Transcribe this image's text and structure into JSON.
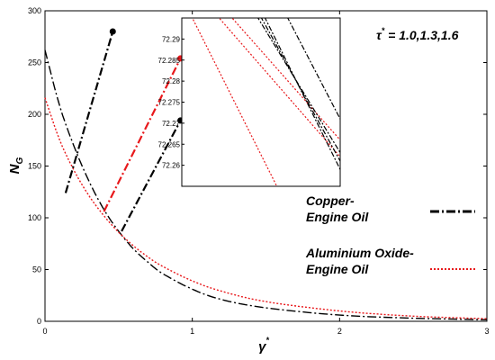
{
  "chart_data": {
    "type": "line",
    "xlabel": "γ",
    "xlabel_sup": "*",
    "ylabel": "N",
    "ylabel_sub": "G",
    "xlim": [
      0,
      3
    ],
    "ylim": [
      0,
      300
    ],
    "xticks": [
      0,
      1,
      2,
      3
    ],
    "yticks": [
      0,
      50,
      100,
      150,
      200,
      250,
      300
    ],
    "annotation": {
      "prefix": "τ",
      "sup": "*",
      "text": " = 1.0,1.3,1.6"
    },
    "legend": [
      {
        "line1": "Copper-",
        "line2": "Engine Oil",
        "color": "#000000",
        "dash": "10,3,2,3"
      },
      {
        "line1": "Aluminium Oxide-",
        "line2": "Engine Oil",
        "color": "#e8181b",
        "dash": "2,2"
      }
    ],
    "series": [
      {
        "color": "#000000",
        "dash": "10,3,2,3",
        "x": [
          0,
          0.1,
          0.2,
          0.3,
          0.4,
          0.5,
          0.6,
          0.7,
          0.8,
          1.0,
          1.2,
          1.5,
          2.0,
          2.5,
          3.0
        ],
        "y": [
          262,
          208,
          168,
          135,
          108,
          87,
          70,
          57,
          46,
          31,
          21,
          13,
          6,
          3,
          1.5
        ]
      },
      {
        "color": "#e8181b",
        "dash": "2,2",
        "x": [
          0,
          0.1,
          0.2,
          0.3,
          0.4,
          0.5,
          0.6,
          0.7,
          0.8,
          1.0,
          1.2,
          1.5,
          2.0,
          2.5,
          3.0
        ],
        "y": [
          216,
          175,
          145,
          121,
          102,
          86,
          73,
          62,
          53,
          39,
          29,
          19,
          10,
          5,
          2.5
        ]
      }
    ],
    "zoom_lines": [
      {
        "color": "#000000",
        "points": [
          [
            0.14,
            124
          ],
          [
            0.46,
            280
          ]
        ]
      },
      {
        "color": "#e8181b",
        "points": [
          [
            0.4,
            106
          ],
          [
            0.92,
            254
          ]
        ]
      },
      {
        "color": "#000000",
        "points": [
          [
            0.52,
            87
          ],
          [
            0.92,
            194
          ]
        ]
      }
    ],
    "inset": {
      "ylim": [
        72.255,
        72.295
      ],
      "yticks": [
        "72.26",
        "72.265",
        "72.27",
        "72.275",
        "72.28",
        "72.285",
        "72.29"
      ],
      "ytick_values": [
        72.26,
        72.265,
        72.27,
        72.275,
        72.28,
        72.285,
        72.29
      ],
      "lines": [
        {
          "color": "#e8181b",
          "dash": "2,2",
          "pts": [
            [
              0.0,
              72.3
            ],
            [
              0.6,
              72.255
            ]
          ]
        },
        {
          "color": "#e8181b",
          "dash": "2,2",
          "pts": [
            [
              0.12,
              72.3
            ],
            [
              1.0,
              72.262
            ]
          ]
        },
        {
          "color": "#e8181b",
          "dash": "2,2",
          "pts": [
            [
              0.2,
              72.3
            ],
            [
              1.0,
              72.266
            ]
          ]
        },
        {
          "color": "#000000",
          "dash": "6,2,2,2",
          "pts": [
            [
              0.4,
              72.3
            ],
            [
              1.0,
              72.263
            ]
          ]
        },
        {
          "color": "#000000",
          "dash": "6,2,2,2",
          "pts": [
            [
              0.43,
              72.3
            ],
            [
              1.0,
              72.261
            ]
          ]
        },
        {
          "color": "#000000",
          "dash": "6,2,2,2",
          "pts": [
            [
              0.46,
              72.3
            ],
            [
              1.0,
              72.259
            ]
          ]
        },
        {
          "color": "#000000",
          "dash": "6,2,2,2",
          "pts": [
            [
              0.6,
              72.3
            ],
            [
              1.0,
              72.271
            ]
          ]
        }
      ]
    }
  }
}
